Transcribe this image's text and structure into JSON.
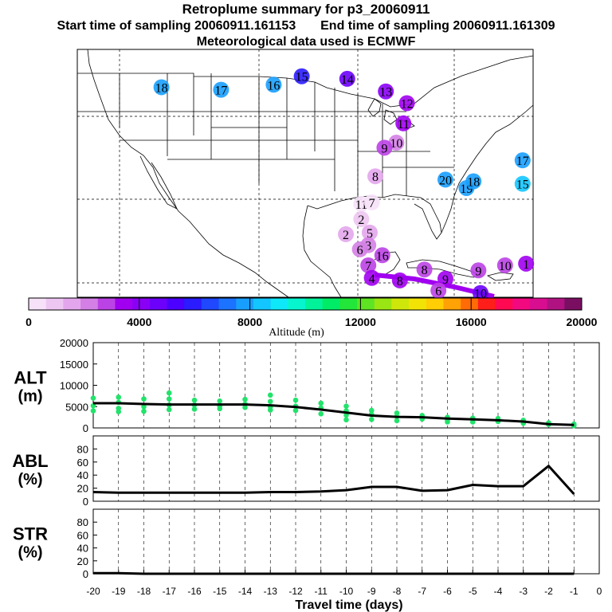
{
  "header": {
    "title": "Retroplume summary for p3_20060911",
    "start_label": "Start time of sampling 20060911.161153",
    "end_label": "End time of sampling 20060911.161309",
    "met_label": "Meteorological data used is ECMWF"
  },
  "colorbar": {
    "xlabel": "Altitude (m)",
    "ticks": [
      "0",
      "4000",
      "8000",
      "12000",
      "16000",
      "20000"
    ],
    "colors": [
      "#f6e1f8",
      "#eec6f2",
      "#e3a6ec",
      "#d47fe6",
      "#bb43e6",
      "#a100f0",
      "#8a00f6",
      "#6c00fb",
      "#4c00ff",
      "#2a1cff",
      "#1f48ff",
      "#1b73ff",
      "#189eff",
      "#13c6ff",
      "#0ee8f8",
      "#06f5cf",
      "#02f29a",
      "#00ec66",
      "#22e63a",
      "#5ee422",
      "#9ae514",
      "#cfe60b",
      "#f1e306",
      "#ffce04",
      "#ffa205",
      "#ff6b07",
      "#ff1e1a",
      "#ff0a52",
      "#f3097f",
      "#d80d8f",
      "#b01282",
      "#7a0f62"
    ]
  },
  "map": {
    "labels": [
      {
        "n": "18",
        "lon": -113.0,
        "lat": 47.5,
        "color": "#189eff"
      },
      {
        "n": "17",
        "lon": -104.5,
        "lat": 47.2,
        "color": "#189eff"
      },
      {
        "n": "16",
        "lon": -97.0,
        "lat": 47.8,
        "color": "#189eff"
      },
      {
        "n": "15",
        "lon": -93.0,
        "lat": 48.8,
        "color": "#2a1cff"
      },
      {
        "n": "14",
        "lon": -86.5,
        "lat": 48.5,
        "color": "#6c00fb"
      },
      {
        "n": "13",
        "lon": -81.0,
        "lat": 47.0,
        "color": "#8a00f6"
      },
      {
        "n": "12",
        "lon": -78.0,
        "lat": 45.6,
        "color": "#a100f0"
      },
      {
        "n": "11",
        "lon": -78.5,
        "lat": 43.2,
        "color": "#a100f0"
      },
      {
        "n": "10",
        "lon": -79.5,
        "lat": 40.9,
        "color": "#d47fe6"
      },
      {
        "n": "9",
        "lon": -81.2,
        "lat": 40.3,
        "color": "#bb43e6"
      },
      {
        "n": "8",
        "lon": -82.5,
        "lat": 36.9,
        "color": "#e3a6ec"
      },
      {
        "n": "20",
        "lon": -72.5,
        "lat": 36.5,
        "color": "#189eff"
      },
      {
        "n": "19",
        "lon": -69.5,
        "lat": 35.5,
        "color": "#189eff"
      },
      {
        "n": "18",
        "lon": -68.5,
        "lat": 36.3,
        "color": "#189eff"
      },
      {
        "n": "17",
        "lon": -61.5,
        "lat": 38.8,
        "color": "#189eff"
      },
      {
        "n": "15",
        "lon": -61.5,
        "lat": 36.0,
        "color": "#13c6ff"
      },
      {
        "n": "11",
        "lon": -84.5,
        "lat": 33.6,
        "color": "#f6e1f8"
      },
      {
        "n": "2",
        "lon": -84.5,
        "lat": 31.8,
        "color": "#eec6f2"
      },
      {
        "n": "5",
        "lon": -83.3,
        "lat": 30.2,
        "color": "#e3a6ec"
      },
      {
        "n": "2",
        "lon": -86.7,
        "lat": 30.0,
        "color": "#e3a6ec"
      },
      {
        "n": "3",
        "lon": -83.5,
        "lat": 28.7,
        "color": "#d47fe6"
      },
      {
        "n": "6",
        "lon": -84.7,
        "lat": 28.2,
        "color": "#d47fe6"
      },
      {
        "n": "16",
        "lon": -81.5,
        "lat": 27.5,
        "color": "#bb43e6"
      },
      {
        "n": "7",
        "lon": -83.5,
        "lat": 26.3,
        "color": "#bb43e6"
      },
      {
        "n": "4",
        "lon": -83.0,
        "lat": 24.8,
        "color": "#a100f0"
      },
      {
        "n": "8",
        "lon": -79.0,
        "lat": 24.5,
        "color": "#a100f0"
      },
      {
        "n": "8",
        "lon": -75.5,
        "lat": 25.8,
        "color": "#bb43e6"
      },
      {
        "n": "9",
        "lon": -72.5,
        "lat": 24.7,
        "color": "#a100f0"
      },
      {
        "n": "6",
        "lon": -73.5,
        "lat": 23.3,
        "color": "#bb43e6"
      },
      {
        "n": "9",
        "lon": -67.8,
        "lat": 25.7,
        "color": "#bb43e6"
      },
      {
        "n": "10",
        "lon": -64.0,
        "lat": 26.3,
        "color": "#bb43e6"
      },
      {
        "n": "7",
        "lon": -83.0,
        "lat": 33.8,
        "color": "#f6e1f8"
      },
      {
        "n": "1",
        "lon": -61.0,
        "lat": 26.5,
        "color": "#a100f0"
      },
      {
        "n": "10",
        "lon": -67.5,
        "lat": 23.0,
        "color": "#6c00fb"
      }
    ]
  },
  "chart_data": [
    {
      "type": "scatter+line",
      "title": "ALT (m)",
      "ylabel_top": "ALT",
      "ylabel_bottom": "(m)",
      "xlabel": "Travel time (days)",
      "xlim": [
        -20,
        0
      ],
      "ylim": [
        0,
        20000
      ],
      "yticks": [
        "0",
        "5000",
        "10000",
        "15000",
        "20000"
      ],
      "median_line": {
        "x": [
          -20,
          -19,
          -18,
          -17,
          -16,
          -15,
          -14,
          -13,
          -12,
          -11,
          -10,
          -9,
          -8,
          -7,
          -6,
          -5,
          -4,
          -3,
          -2,
          -1
        ],
        "y": [
          5800,
          5800,
          5600,
          5500,
          5500,
          5500,
          5500,
          5300,
          4900,
          4300,
          3600,
          2900,
          2600,
          2500,
          2200,
          2000,
          1800,
          1500,
          900,
          700
        ]
      },
      "points": {
        "x": [
          -20,
          -20,
          -20,
          -19,
          -19,
          -19,
          -19,
          -18,
          -18,
          -18,
          -17,
          -17,
          -17,
          -17,
          -16,
          -16,
          -16,
          -15,
          -15,
          -15,
          -14,
          -14,
          -14,
          -13,
          -13,
          -13,
          -13,
          -12,
          -12,
          -12,
          -11,
          -11,
          -11,
          -10,
          -10,
          -10,
          -10,
          -9,
          -9,
          -9,
          -8,
          -8,
          -8,
          -7,
          -7,
          -6,
          -6,
          -6,
          -5,
          -5,
          -4,
          -4,
          -3,
          -3,
          -2,
          -2,
          -1,
          -1
        ],
        "y": [
          7000,
          5200,
          4000,
          7200,
          6000,
          4600,
          3800,
          6800,
          5000,
          3900,
          8200,
          6800,
          5400,
          4300,
          6500,
          5400,
          4400,
          6300,
          5100,
          4500,
          6700,
          5600,
          4800,
          7700,
          6200,
          4900,
          4200,
          6500,
          5100,
          4100,
          5800,
          4700,
          3300,
          5100,
          4000,
          3000,
          1900,
          4100,
          3200,
          2000,
          3500,
          2700,
          1700,
          2900,
          2100,
          2500,
          1900,
          1400,
          2300,
          1400,
          2200,
          1500,
          1800,
          1100,
          1200,
          800,
          900,
          500
        ]
      }
    },
    {
      "type": "line",
      "ylabel_top": "ABL",
      "ylabel_bottom": "(%)",
      "xlim": [
        -20,
        0
      ],
      "ylim": [
        0,
        100
      ],
      "yticks": [
        "0",
        "20",
        "40",
        "60",
        "80"
      ],
      "x": [
        -20,
        -19,
        -18,
        -17,
        -16,
        -15,
        -14,
        -13,
        -12,
        -11,
        -10,
        -9,
        -8,
        -7,
        -6,
        -5,
        -4,
        -3,
        -2,
        -1
      ],
      "y": [
        14,
        13,
        13,
        13,
        13,
        13,
        13,
        14,
        14,
        15,
        17,
        22,
        22,
        16,
        17,
        25,
        23,
        23,
        54,
        11
      ]
    },
    {
      "type": "line",
      "ylabel_top": "STR",
      "ylabel_bottom": "(%)",
      "xlim": [
        -20,
        0
      ],
      "ylim": [
        0,
        100
      ],
      "yticks": [
        "0",
        "20",
        "40",
        "60",
        "80"
      ],
      "x": [
        -20,
        -19,
        -18,
        -17,
        -16,
        -15,
        -14,
        -13,
        -12,
        -11,
        -10,
        -9,
        -8,
        -7,
        -6,
        -5,
        -4,
        -3,
        -2,
        -1
      ],
      "y": [
        1,
        1,
        0,
        0,
        0,
        0,
        0,
        0,
        0,
        0,
        0,
        0,
        0,
        0,
        0,
        0,
        0,
        0,
        0,
        0
      ],
      "xticks": [
        "-20",
        "-19",
        "-18",
        "-17",
        "-16",
        "-15",
        "-14",
        "-13",
        "-12",
        "-11",
        "-10",
        "-9",
        "-8",
        "-7",
        "-6",
        "-5",
        "-4",
        "-3",
        "-2",
        "-1",
        "0"
      ]
    }
  ],
  "colors": {
    "point_green": "#22e36b",
    "line_black": "#000000",
    "plume_purple": "#a100f0"
  }
}
